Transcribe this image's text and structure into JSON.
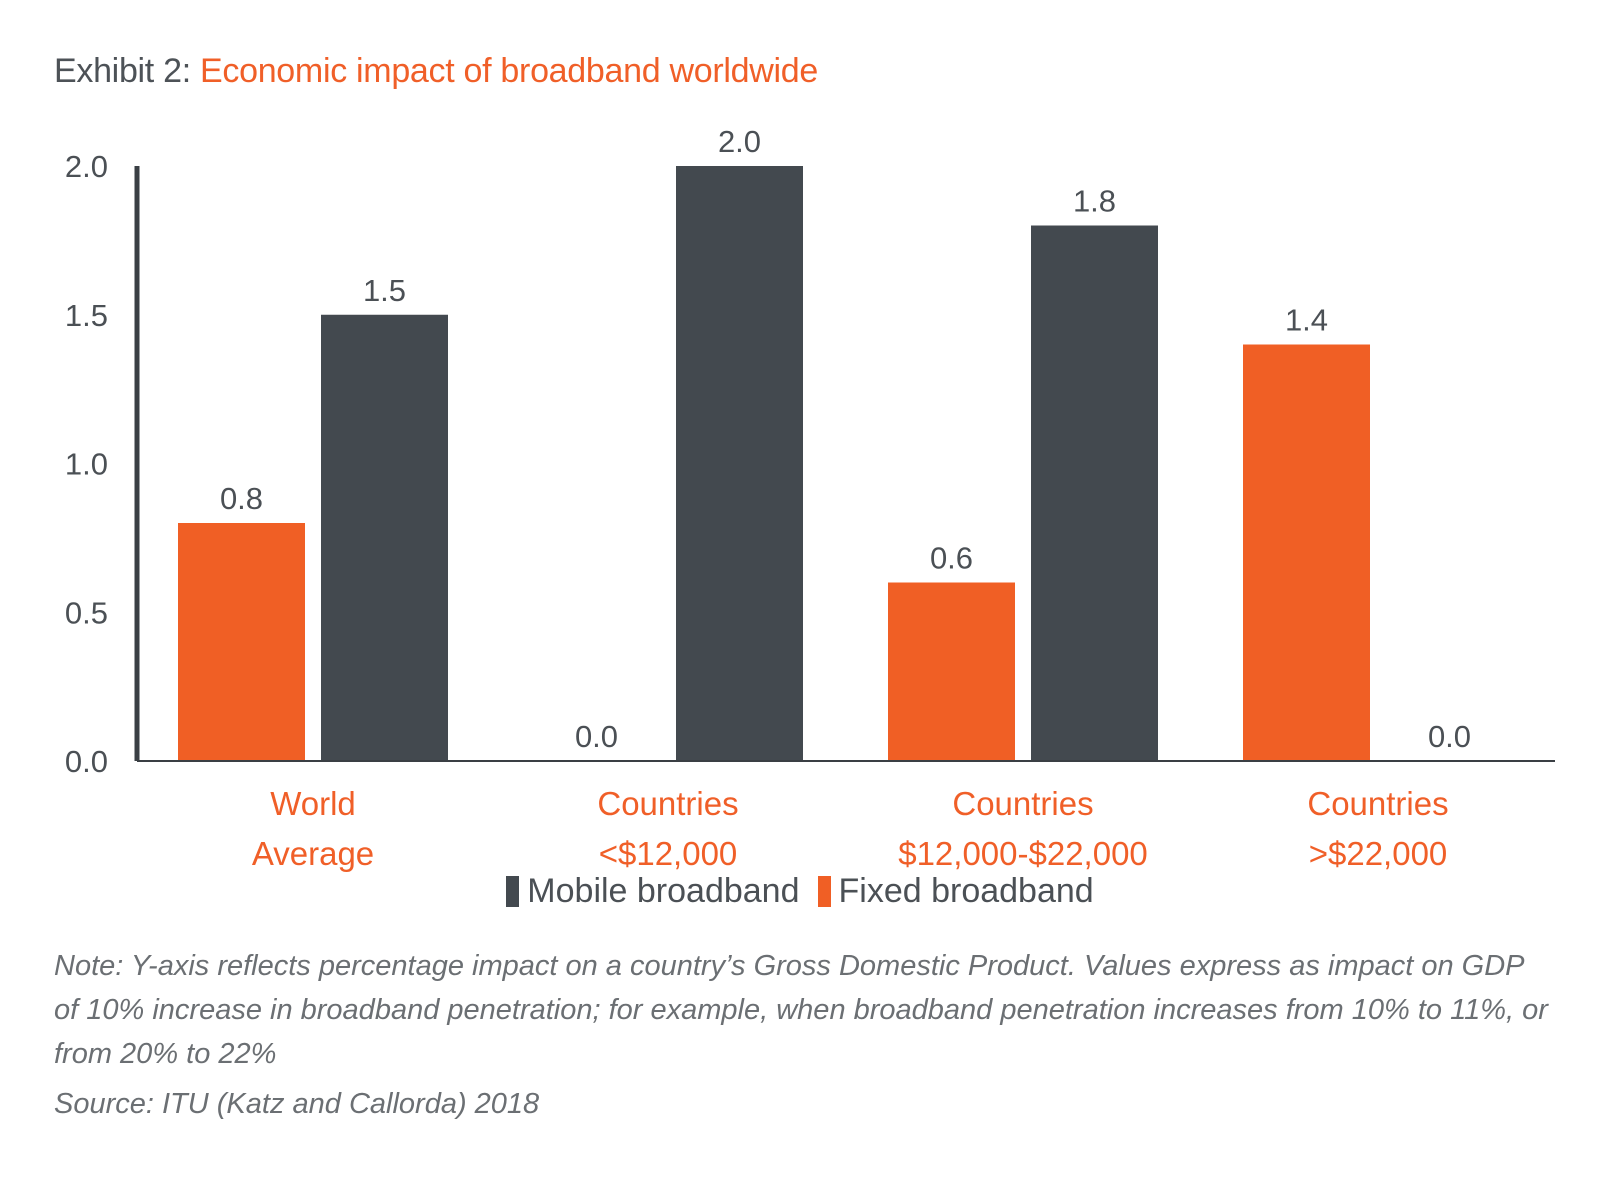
{
  "title": {
    "prefix": "Exhibit 2:",
    "main": "Economic impact of broadband worldwide"
  },
  "colors": {
    "mobile": "#43494f",
    "fixed": "#f05f25",
    "axis": "#3a3f44",
    "accent_text": "#f05f28"
  },
  "legend": {
    "mobile_label": "Mobile broadband",
    "fixed_label": "Fixed broadband"
  },
  "note": "Note: Y-axis reflects percentage impact on a country’s Gross Domestic Product. Values express as impact on GDP of 10% increase in broadband penetration; for example, when broadband penetration increases from 10% to 11%, or from 20% to 22%",
  "source": "Source: ITU (Katz and Callorda) 2018",
  "chart_data": {
    "type": "bar",
    "title": "Economic impact of broadband worldwide",
    "categories": [
      [
        "World",
        "Average"
      ],
      [
        "Countries",
        "<$12,000"
      ],
      [
        "Countries",
        "$12,000-$22,000"
      ],
      [
        "Countries",
        ">$22,000"
      ]
    ],
    "series": [
      {
        "name": "Fixed broadband",
        "color": "#f05f25",
        "values": [
          0.8,
          0.0,
          0.6,
          1.4
        ],
        "labels": [
          "0.8",
          "0.0",
          "0.6",
          "1.4"
        ]
      },
      {
        "name": "Mobile broadband",
        "color": "#43494f",
        "values": [
          1.5,
          2.0,
          1.8,
          0.0
        ],
        "labels": [
          "1.5",
          "2.0",
          "1.8",
          "0.0"
        ]
      }
    ],
    "yticks": [
      "0.0",
      "0.5",
      "1.0",
      "1.5",
      "2.0"
    ],
    "ylim": [
      0,
      2.0
    ],
    "grid": false,
    "legend_position": "bottom"
  }
}
